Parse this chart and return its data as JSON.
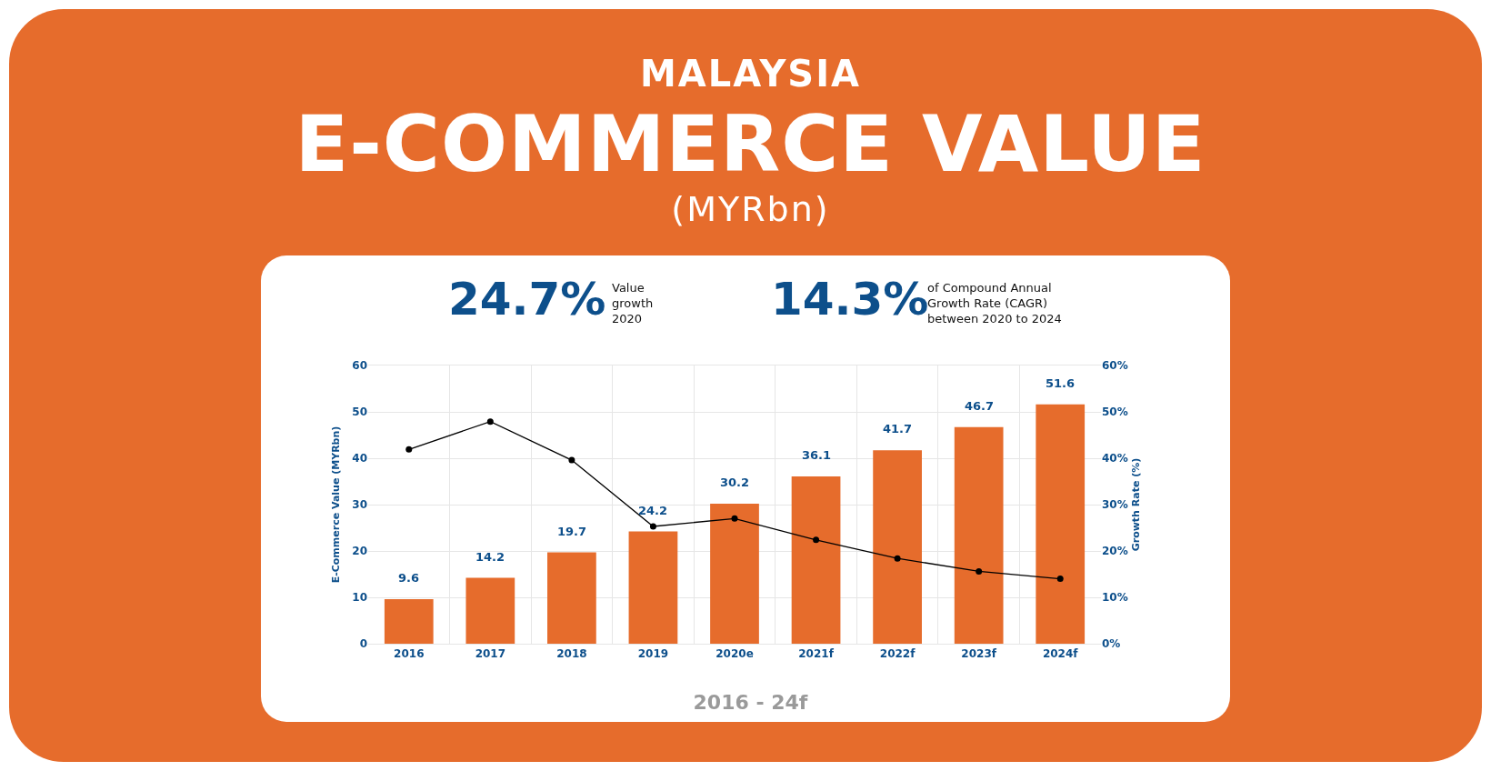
{
  "chart_data": {
    "type": "bar",
    "title": "E-COMMERCE VALUE",
    "subtitle": "(MYRbn)",
    "annotations": [
      "MALAYSIA",
      "24.7%",
      "Value growth 2020",
      "14.3%",
      "of Compound Annual Growth Rate (CAGR) between 2020 to 2024",
      "2016 - 24f"
    ],
    "categories": [
      "2016",
      "2017",
      "2018",
      "2019",
      "2020e",
      "2021f",
      "2022f",
      "2023f",
      "2024f"
    ],
    "series": [
      {
        "color": "#e66c2c",
        "values": [
          9.6,
          14.2,
          19.7,
          24.2,
          30.2,
          36.1,
          41.7,
          46.7,
          51.6
        ],
        "value_labels": [
          "9.6",
          "14.2",
          "19.7",
          "24.2",
          "30.2",
          "36.1",
          "41.7",
          "46.7",
          "51.6"
        ]
      },
      {
        "type": "line",
        "axis": "y2",
        "color": "#000000",
        "values": [
          41.9,
          47.9,
          39.6,
          25.3,
          27.0,
          22.4,
          18.4,
          15.6,
          14.0
        ]
      }
    ],
    "ylabel": "E-Commerce Value (MYRbn)",
    "y2label": "Growth Rate (%)",
    "ylim": [
      0,
      60
    ],
    "yticks": [
      0,
      10,
      20,
      30,
      40,
      50,
      60
    ],
    "y2lim": [
      0,
      60
    ],
    "y2ticks": [
      {
        "value": 0,
        "label": "0%"
      },
      {
        "value": 10,
        "label": "10%"
      },
      {
        "value": 20,
        "label": "20%"
      },
      {
        "value": 30,
        "label": "30%"
      },
      {
        "value": 40,
        "label": "40%"
      },
      {
        "value": 50,
        "label": "50%"
      },
      {
        "value": 60,
        "label": "60%"
      }
    ],
    "grid": true,
    "legend": false,
    "marker": "circle",
    "line_style": "solid"
  }
}
